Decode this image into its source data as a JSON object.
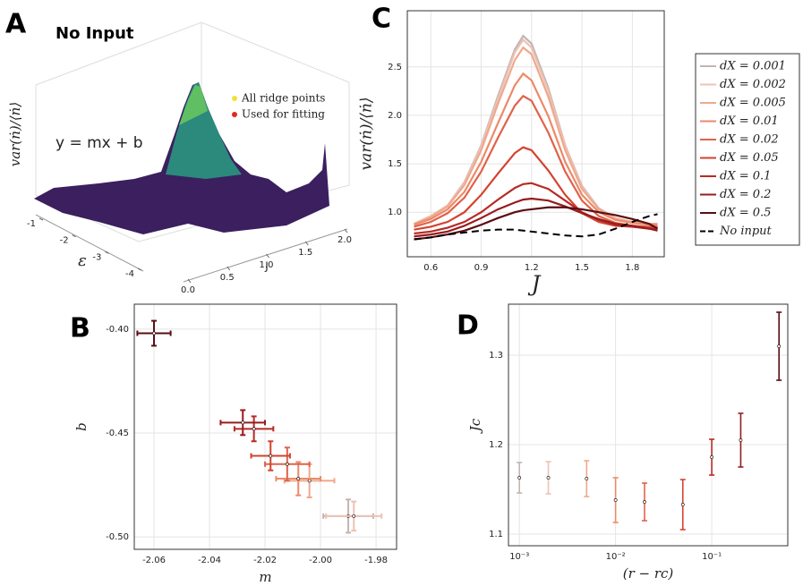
{
  "chart_data": [
    {
      "type": "surface3d",
      "label": "A",
      "title": "No Input",
      "annotation": "y = mx + b",
      "zlabel": "var(ṅ)/⟨ṅ⟩",
      "xlabel": "ε",
      "ylabel": "J",
      "xticks": [
        -1,
        -2,
        -3,
        -4
      ],
      "yticks": [
        {
          "value": 0,
          "label": "0.0"
        },
        0.5,
        {
          "value": 1,
          "label": "1.0"
        },
        1.5,
        {
          "value": 2,
          "label": "2.0"
        }
      ],
      "series": [
        {
          "name": "All ridge points",
          "color": "#f2e230"
        },
        {
          "name": "Used for fitting",
          "color": "#e8261c"
        }
      ]
    },
    {
      "type": "line",
      "label": "C",
      "xlabel": "J",
      "ylabel": "var(ṅ)/⟨ṅ⟩",
      "grid": true,
      "x": [
        0.5,
        0.6,
        0.7,
        0.8,
        0.9,
        1.0,
        1.1,
        1.15,
        1.2,
        1.3,
        1.4,
        1.5,
        1.6,
        1.7,
        1.8,
        1.9,
        1.95
      ],
      "xlim": [
        0.46,
        1.99
      ],
      "xticks": [
        0.6,
        0.9,
        1.2,
        1.5,
        1.8
      ],
      "ylim": [
        0.54,
        3.08
      ],
      "yticks": [
        {
          "value": 1,
          "label": "1.0"
        },
        1.5,
        {
          "value": 2,
          "label": "2.0"
        },
        2.5
      ],
      "series": [
        {
          "name": "dX = 0.001",
          "color": "#c4b4b2",
          "values": [
            0.88,
            0.96,
            1.07,
            1.31,
            1.69,
            2.2,
            2.68,
            2.82,
            2.74,
            2.28,
            1.69,
            1.27,
            1.04,
            0.94,
            0.9,
            0.88,
            0.88
          ]
        },
        {
          "name": "dX = 0.002",
          "color": "#ecc2b4",
          "values": [
            0.88,
            0.96,
            1.07,
            1.3,
            1.68,
            2.17,
            2.65,
            2.78,
            2.7,
            2.25,
            1.68,
            1.26,
            1.03,
            0.94,
            0.9,
            0.88,
            0.88
          ]
        },
        {
          "name": "dX = 0.005",
          "color": "#f0a88c",
          "values": [
            0.88,
            0.95,
            1.06,
            1.28,
            1.64,
            2.12,
            2.57,
            2.7,
            2.63,
            2.19,
            1.64,
            1.24,
            1.03,
            0.93,
            0.9,
            0.88,
            0.88
          ]
        },
        {
          "name": "dX = 0.01",
          "color": "#eb8a68",
          "values": [
            0.87,
            0.93,
            1.03,
            1.21,
            1.52,
            1.92,
            2.31,
            2.43,
            2.36,
            1.99,
            1.52,
            1.18,
            1.0,
            0.92,
            0.89,
            0.87,
            0.87
          ]
        },
        {
          "name": "dX = 0.02",
          "color": "#e0624a",
          "values": [
            0.85,
            0.9,
            0.99,
            1.15,
            1.42,
            1.77,
            2.1,
            2.2,
            2.15,
            1.82,
            1.42,
            1.12,
            0.96,
            0.89,
            0.86,
            0.85,
            0.85
          ]
        },
        {
          "name": "dX = 0.05",
          "color": "#d2432f",
          "values": [
            0.82,
            0.85,
            0.9,
            1.0,
            1.18,
            1.4,
            1.61,
            1.67,
            1.64,
            1.43,
            1.18,
            0.99,
            0.9,
            0.86,
            0.85,
            0.84,
            0.84
          ]
        },
        {
          "name": "dX = 0.1",
          "color": "#b82a24",
          "values": [
            0.78,
            0.8,
            0.84,
            0.9,
            1.0,
            1.13,
            1.25,
            1.29,
            1.3,
            1.24,
            1.12,
            1.0,
            0.92,
            0.87,
            0.85,
            0.83,
            0.82
          ]
        },
        {
          "name": "dX = 0.2",
          "color": "#961c1e",
          "values": [
            0.75,
            0.77,
            0.8,
            0.86,
            0.94,
            1.03,
            1.1,
            1.13,
            1.14,
            1.12,
            1.06,
            0.99,
            0.93,
            0.88,
            0.86,
            0.83,
            0.81
          ]
        },
        {
          "name": "dX = 0.5",
          "color": "#5a0e14",
          "values": [
            0.72,
            0.74,
            0.77,
            0.81,
            0.87,
            0.94,
            1.0,
            1.02,
            1.03,
            1.05,
            1.05,
            1.03,
            1.0,
            0.97,
            0.93,
            0.88,
            0.83
          ]
        },
        {
          "name": "No input",
          "color": "#000000",
          "dashed": true,
          "values": [
            0.72,
            0.74,
            0.77,
            0.79,
            0.81,
            0.82,
            0.82,
            0.81,
            0.8,
            0.78,
            0.76,
            0.75,
            0.77,
            0.83,
            0.9,
            0.96,
            0.98
          ]
        }
      ]
    },
    {
      "type": "errorbar",
      "label": "B",
      "xlabel": "m",
      "ylabel": "b",
      "grid": true,
      "xlim": [
        -2.0671,
        -1.9726
      ],
      "xticks": [
        -2.06,
        -2.04,
        -2.02,
        {
          "value": -2,
          "label": "-2.00"
        },
        -1.98
      ],
      "ylim": [
        -0.506,
        -0.388
      ],
      "yticks": [
        {
          "value": -0.4,
          "label": "-0.40"
        },
        -0.45,
        {
          "value": -0.5,
          "label": "-0.50"
        }
      ],
      "x": [
        -1.99,
        -1.988,
        -2.004,
        -2.008,
        -2.012,
        -2.018,
        -2.024,
        -2.028,
        -2.06
      ],
      "x_err": [
        0.009,
        0.01,
        0.009,
        0.008,
        0.008,
        0.007,
        0.007,
        0.008,
        0.006
      ],
      "values": [
        -0.49,
        -0.49,
        -0.473,
        -0.472,
        -0.465,
        -0.461,
        -0.448,
        -0.445,
        -0.402
      ],
      "errors": [
        0.008,
        0.007,
        0.008,
        0.008,
        0.008,
        0.007,
        0.006,
        0.006,
        0.006
      ],
      "colors": [
        "#c4b4b2",
        "#ecc2b4",
        "#f0a88c",
        "#eb8a68",
        "#e0624a",
        "#d2432f",
        "#b82a24",
        "#961c1e",
        "#5a0e14"
      ]
    },
    {
      "type": "errorbar",
      "label": "D",
      "xlabel": "(r − rc)",
      "ylabel": "Jc",
      "grid": true,
      "xlog": true,
      "xlim": [
        0.00077,
        0.617
      ],
      "xticks": [
        {
          "value": 0.001,
          "label": "10⁻³"
        },
        {
          "value": 0.01,
          "label": "10⁻²"
        },
        {
          "value": 0.1,
          "label": "10⁻¹"
        }
      ],
      "ylim": [
        1.087,
        1.357
      ],
      "yticks": [
        1.1,
        1.2,
        1.3
      ],
      "x": [
        0.001,
        0.002,
        0.005,
        0.01,
        0.02,
        0.05,
        0.1,
        0.2,
        0.5
      ],
      "values": [
        1.163,
        1.163,
        1.162,
        1.138,
        1.136,
        1.133,
        1.186,
        1.205,
        1.31
      ],
      "errors": [
        0.017,
        0.018,
        0.02,
        0.025,
        0.021,
        0.028,
        0.02,
        0.03,
        0.038
      ],
      "colors": [
        "#c4b4b2",
        "#ecc2b4",
        "#f0a88c",
        "#eb8a68",
        "#e0624a",
        "#d2432f",
        "#b82a24",
        "#961c1e",
        "#5a0e14"
      ]
    }
  ]
}
